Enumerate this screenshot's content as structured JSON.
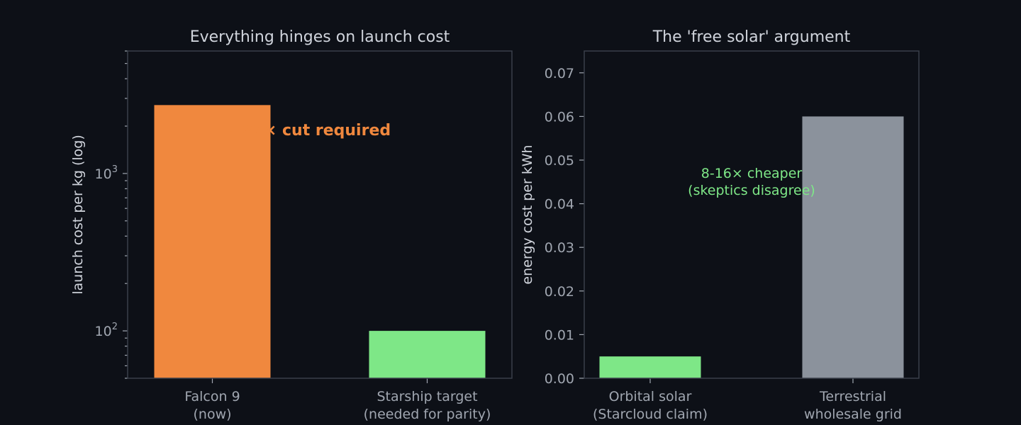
{
  "chart_data": [
    {
      "type": "bar",
      "title": "Everything hinges on launch cost",
      "ylabel": "launch cost per kg (log)",
      "yscale": "log",
      "ylim": [
        50,
        6000
      ],
      "categories": [
        [
          "Falcon 9",
          "(now)"
        ],
        [
          "Starship target",
          "(needed for parity)"
        ]
      ],
      "values": [
        2720,
        100
      ],
      "bar_colors": [
        "#f0883e",
        "#7ee787"
      ],
      "y_ticks": [
        {
          "value": 100,
          "base": "10",
          "exp": "2"
        },
        {
          "value": 1000,
          "base": "10",
          "exp": "3"
        }
      ],
      "annotation": {
        "text": "~27× cut required",
        "color": "#f0883e"
      }
    },
    {
      "type": "bar",
      "title": "The 'free solar' argument",
      "ylabel": "energy cost per kWh",
      "ylim": [
        0,
        0.075
      ],
      "categories": [
        [
          "Orbital solar",
          "(Starcloud claim)"
        ],
        [
          "Terrestrial",
          "wholesale grid"
        ]
      ],
      "values": [
        0.005,
        0.06
      ],
      "bar_colors": [
        "#7ee787",
        "#8b929c"
      ],
      "y_ticks": [
        "0.00",
        "0.01",
        "0.02",
        "0.03",
        "0.04",
        "0.05",
        "0.06",
        "0.07"
      ],
      "annotation": {
        "lines": [
          "8-16× cheaper",
          "(skeptics disagree)"
        ],
        "color": "#7ee787"
      }
    }
  ]
}
